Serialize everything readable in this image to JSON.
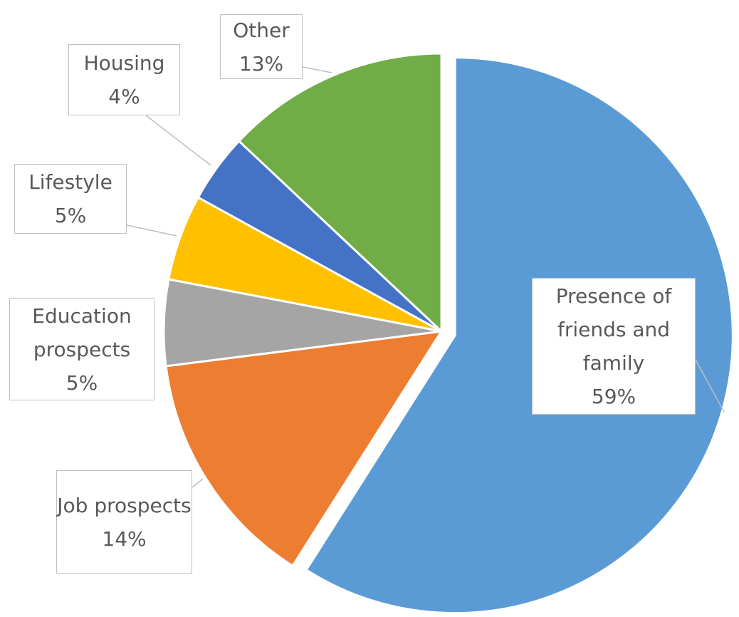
{
  "chart_data": {
    "type": "pie",
    "categories": [
      "Presence of friends and family",
      "Job prospects",
      "Education prospects",
      "Lifestyle",
      "Housing",
      "Other"
    ],
    "values": [
      59,
      14,
      5,
      5,
      4,
      13
    ],
    "value_labels": [
      "59%",
      "14%",
      "5%",
      "5%",
      "4%",
      "13%"
    ],
    "colors": [
      "#5b9bd5",
      "#ed7d31",
      "#a5a5a5",
      "#ffc000",
      "#4472c4",
      "#70ad47"
    ]
  }
}
